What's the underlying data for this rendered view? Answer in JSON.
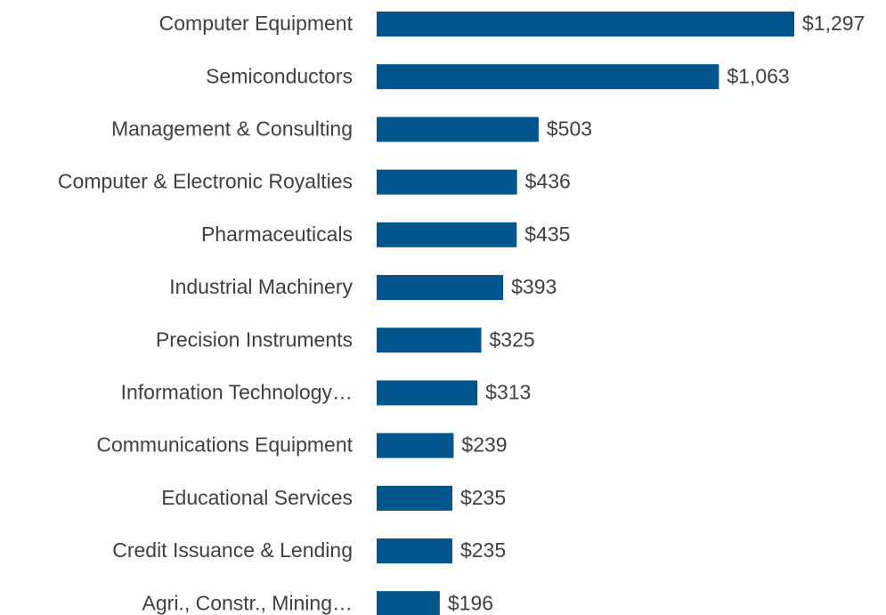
{
  "chart_data": {
    "type": "bar",
    "orientation": "horizontal",
    "color": "#00558c",
    "categories": [
      "Computer Equipment",
      "Semiconductors",
      "Management & Consulting",
      "Computer & Electronic Royalties",
      "Pharmaceuticals",
      "Industrial Machinery",
      "Precision Instruments",
      "Information Technology…",
      "Communications Equipment",
      "Educational Services",
      "Credit Issuance & Lending",
      "Agri., Constr., Mining…"
    ],
    "values": [
      1297,
      1063,
      503,
      436,
      435,
      393,
      325,
      313,
      239,
      235,
      235,
      196
    ],
    "value_labels": [
      "$1,297",
      "$1,063",
      "$503",
      "$436",
      "$435",
      "$393",
      "$325",
      "$313",
      "$239",
      "$235",
      "$235",
      "$196"
    ]
  }
}
